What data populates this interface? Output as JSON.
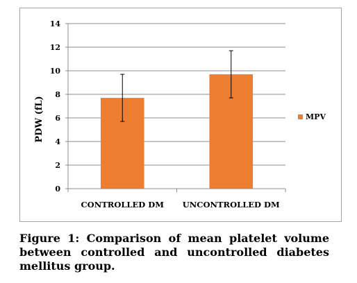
{
  "chart_data": {
    "type": "bar",
    "categories": [
      "CONTROLLED DM",
      "UNCONTROLLED DM"
    ],
    "series": [
      {
        "name": "MPV",
        "values": [
          7.7,
          9.7
        ],
        "error": [
          2.0,
          2.0
        ],
        "color": "#ed7d31"
      }
    ],
    "ylabel": "PDW (fL)",
    "ylim": [
      0,
      14
    ],
    "yticks": [
      0,
      2,
      4,
      6,
      8,
      10,
      12,
      14
    ],
    "grid": true,
    "legend_position": "right"
  },
  "caption": "Figure 1: Comparison of mean platelet volume between controlled and uncontrolled diabetes mellitus group."
}
